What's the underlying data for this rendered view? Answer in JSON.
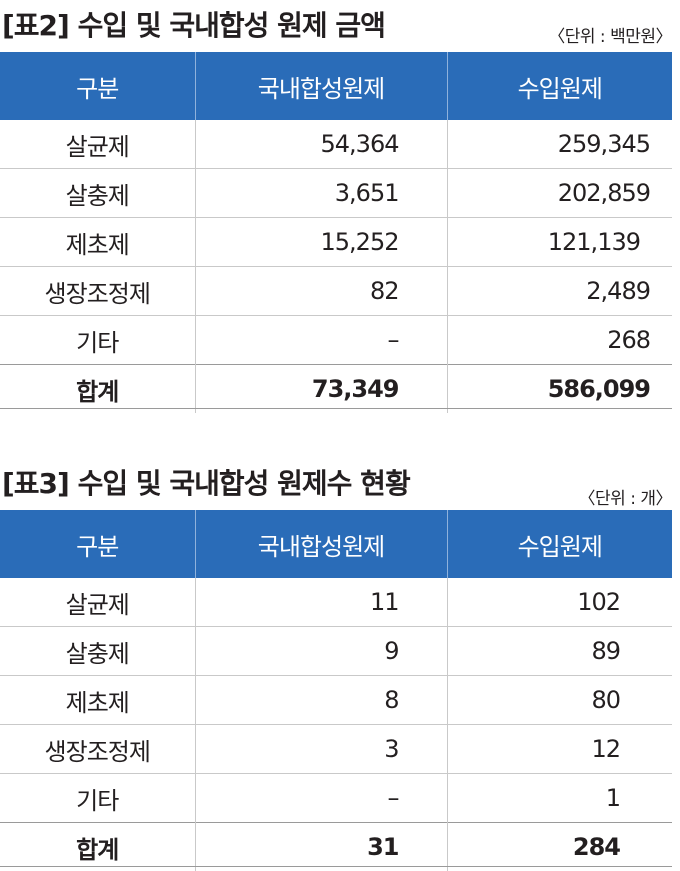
{
  "table2": {
    "title": "[표2] 수입 및 국내합성 원제 금액",
    "unit": "〈단위 :  백만원〉",
    "headers": [
      "구분",
      "국내합성원제",
      "수입원제"
    ],
    "rows": [
      {
        "label": "살균제",
        "domestic": "54,364",
        "imported": "259,345"
      },
      {
        "label": "살충제",
        "domestic": "3,651",
        "imported": "202,859"
      },
      {
        "label": "제초제",
        "domestic": "15,252",
        "imported": "121,139"
      },
      {
        "label": "생장조정제",
        "domestic": "82",
        "imported": "2,489"
      },
      {
        "label": "기타",
        "domestic": "–",
        "imported": "268"
      },
      {
        "label": "합계",
        "domestic": "73,349",
        "imported": "586,099"
      }
    ]
  },
  "table3": {
    "title": "[표3] 수입 및 국내합성 원제수 현황",
    "unit": "〈단위 :  개〉",
    "headers": [
      "구분",
      "국내합성원제",
      "수입원제"
    ],
    "rows": [
      {
        "label": "살균제",
        "domestic": "11",
        "imported": "102"
      },
      {
        "label": "살충제",
        "domestic": "9",
        "imported": "89"
      },
      {
        "label": "제초제",
        "domestic": "8",
        "imported": "80"
      },
      {
        "label": "생장조정제",
        "domestic": "3",
        "imported": "12"
      },
      {
        "label": "기타",
        "domestic": "–",
        "imported": "1"
      },
      {
        "label": "합계",
        "domestic": "31",
        "imported": "284"
      }
    ]
  }
}
